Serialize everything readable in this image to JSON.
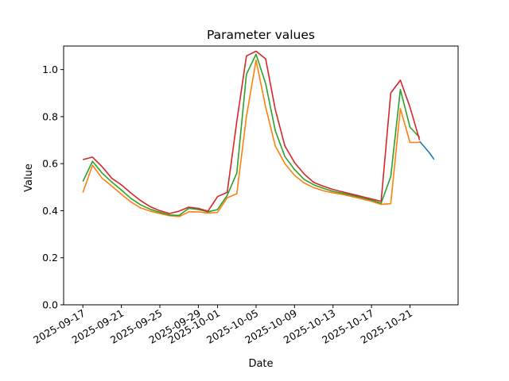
{
  "chart_data": {
    "type": "line",
    "title": "Parameter values",
    "xlabel": "Date",
    "ylabel": "Value",
    "ylim": [
      0,
      1.1
    ],
    "xlim": [
      "2025-09-15",
      "2025-10-26"
    ],
    "x_ticks": [
      "2025-09-17",
      "2025-09-21",
      "2025-09-25",
      "2025-09-29",
      "2025-10-01",
      "2025-10-05",
      "2025-10-09",
      "2025-10-13",
      "2025-10-17",
      "2025-10-21"
    ],
    "y_ticks": [
      "0.0",
      "0.2",
      "0.4",
      "0.6",
      "0.8",
      "1.0"
    ],
    "grid": false,
    "series": [
      {
        "color": "#1f77b4",
        "x": [
          "2025-10-22",
          "2025-10-23",
          "2025-10-23 12:00"
        ],
        "values": [
          0.695,
          0.647,
          0.618
        ]
      },
      {
        "color": "#ff7f0e",
        "x": [
          "2025-09-17",
          "2025-09-18",
          "2025-09-19",
          "2025-09-20",
          "2025-09-21",
          "2025-09-22",
          "2025-09-23",
          "2025-09-24",
          "2025-09-25",
          "2025-09-26",
          "2025-09-27",
          "2025-09-28",
          "2025-09-29",
          "2025-09-30",
          "2025-10-01",
          "2025-10-02",
          "2025-10-03",
          "2025-10-04",
          "2025-10-05",
          "2025-10-06",
          "2025-10-07",
          "2025-10-08",
          "2025-10-09",
          "2025-10-10",
          "2025-10-11",
          "2025-10-12",
          "2025-10-13",
          "2025-10-14",
          "2025-10-15",
          "2025-10-16",
          "2025-10-17",
          "2025-10-18",
          "2025-10-19",
          "2025-10-20",
          "2025-10-21",
          "2025-10-22"
        ],
        "values": [
          0.477,
          0.593,
          0.538,
          0.505,
          0.47,
          0.437,
          0.412,
          0.398,
          0.388,
          0.379,
          0.375,
          0.395,
          0.395,
          0.39,
          0.393,
          0.455,
          0.472,
          0.8,
          1.04,
          0.84,
          0.675,
          0.6,
          0.55,
          0.518,
          0.498,
          0.485,
          0.476,
          0.469,
          0.46,
          0.45,
          0.44,
          0.427,
          0.43,
          0.835,
          0.69,
          0.69
        ]
      },
      {
        "color": "#2ca02c",
        "x": [
          "2025-09-17",
          "2025-09-18",
          "2025-09-19",
          "2025-09-20",
          "2025-09-21",
          "2025-09-22",
          "2025-09-23",
          "2025-09-24",
          "2025-09-25",
          "2025-09-26",
          "2025-09-27",
          "2025-09-28",
          "2025-09-29",
          "2025-09-30",
          "2025-10-01",
          "2025-10-02",
          "2025-10-03",
          "2025-10-04",
          "2025-10-05",
          "2025-10-06",
          "2025-10-07",
          "2025-10-08",
          "2025-10-09",
          "2025-10-10",
          "2025-10-11",
          "2025-10-12",
          "2025-10-13",
          "2025-10-14",
          "2025-10-15",
          "2025-10-16",
          "2025-10-17",
          "2025-10-18",
          "2025-10-19",
          "2025-10-20",
          "2025-10-21",
          "2025-10-22"
        ],
        "values": [
          0.524,
          0.61,
          0.56,
          0.522,
          0.488,
          0.452,
          0.425,
          0.406,
          0.393,
          0.382,
          0.38,
          0.41,
          0.405,
          0.395,
          0.405,
          0.465,
          0.56,
          0.98,
          1.065,
          0.94,
          0.74,
          0.63,
          0.575,
          0.533,
          0.51,
          0.495,
          0.482,
          0.474,
          0.465,
          0.455,
          0.445,
          0.432,
          0.545,
          0.915,
          0.755,
          0.712
        ]
      },
      {
        "color": "#d62728",
        "x": [
          "2025-09-17",
          "2025-09-18",
          "2025-09-19",
          "2025-09-20",
          "2025-09-21",
          "2025-09-22",
          "2025-09-23",
          "2025-09-24",
          "2025-09-25",
          "2025-09-26",
          "2025-09-27",
          "2025-09-28",
          "2025-09-29",
          "2025-09-30",
          "2025-10-01",
          "2025-10-02",
          "2025-10-03",
          "2025-10-04",
          "2025-10-05",
          "2025-10-06",
          "2025-10-07",
          "2025-10-08",
          "2025-10-09",
          "2025-10-10",
          "2025-10-11",
          "2025-10-12",
          "2025-10-13",
          "2025-10-14",
          "2025-10-15",
          "2025-10-16",
          "2025-10-17",
          "2025-10-18",
          "2025-10-19",
          "2025-10-20",
          "2025-10-21",
          "2025-10-22"
        ],
        "values": [
          0.617,
          0.628,
          0.587,
          0.538,
          0.51,
          0.475,
          0.443,
          0.417,
          0.4,
          0.388,
          0.398,
          0.415,
          0.41,
          0.398,
          0.46,
          0.478,
          0.78,
          1.058,
          1.078,
          1.045,
          0.83,
          0.675,
          0.605,
          0.556,
          0.52,
          0.504,
          0.49,
          0.48,
          0.47,
          0.46,
          0.45,
          0.44,
          0.9,
          0.955,
          0.84,
          0.7
        ]
      }
    ]
  }
}
